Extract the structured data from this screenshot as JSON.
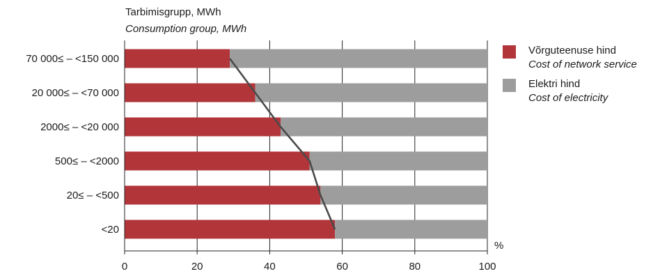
{
  "chart_data": {
    "type": "bar",
    "orientation": "horizontal",
    "stacked": true,
    "ylabel_et": "Tarbimisgrupp, MWh",
    "ylabel_en": "Consumption group, MWh",
    "xunit": "%",
    "xlim": [
      0,
      100
    ],
    "xticks": [
      0,
      20,
      40,
      60,
      80,
      100
    ],
    "categories": [
      "70 000≤ – <150 000",
      "20 000≤ – <70 000",
      "2000≤ – <20 000",
      "500≤ – <2000",
      "20≤ – <500",
      "<20"
    ],
    "series": [
      {
        "name_et": "Võrguteenuse hind",
        "name_en": "Cost of network service",
        "color": "#b2353a",
        "values": [
          29,
          36,
          43,
          51,
          54,
          58
        ]
      },
      {
        "name_et": "Elektri hind",
        "name_en": "Cost of electricity",
        "color": "#9d9d9d",
        "values": [
          71,
          64,
          57,
          49,
          46,
          42
        ]
      }
    ],
    "connector_line": true,
    "grid": "vertical",
    "legend_position": "right"
  }
}
